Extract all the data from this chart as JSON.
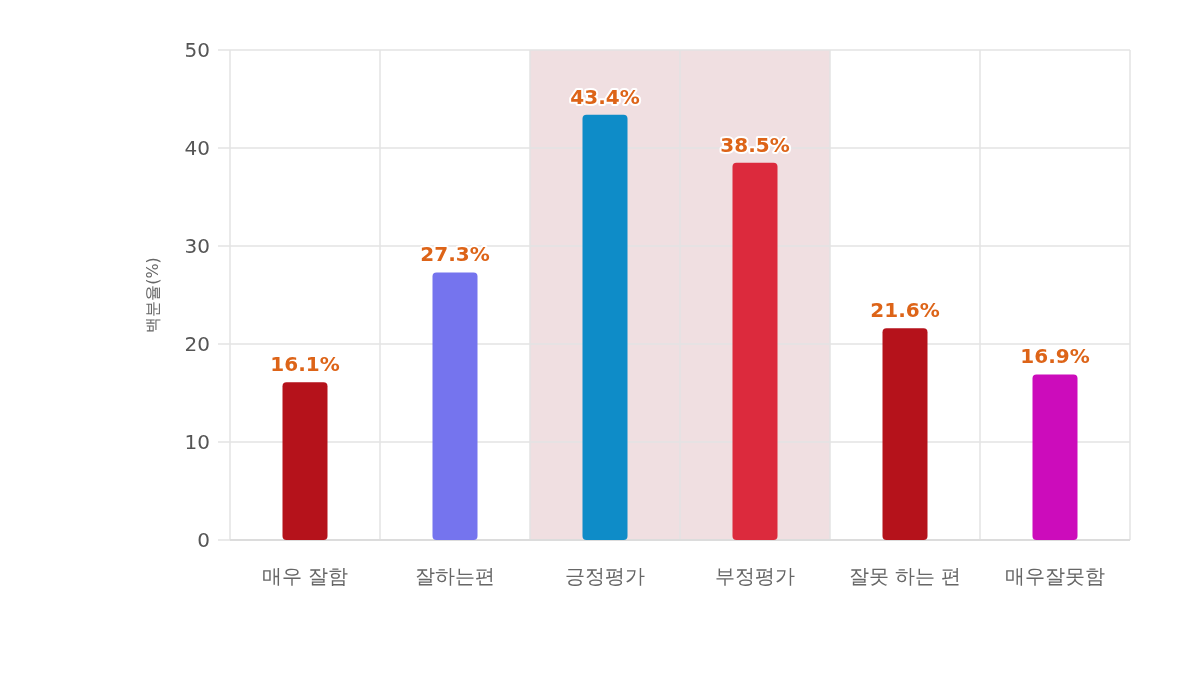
{
  "chart_data": {
    "type": "bar",
    "ylabel": "백분율(%)",
    "categories": [
      "매우 잘함",
      "잘하는편",
      "긍정평가",
      "부정평가",
      "잘못 하는 편",
      "매우잘못함"
    ],
    "values": [
      16.1,
      27.3,
      43.4,
      38.5,
      21.6,
      16.9
    ],
    "value_labels": [
      "16.1%",
      "27.3%",
      "43.4%",
      "38.5%",
      "21.6%",
      "16.9%"
    ],
    "colors": [
      "#b5121b",
      "#7574ee",
      "#0e8cc8",
      "#dc2a3d",
      "#b5121b",
      "#cc0cbb"
    ],
    "ylim": [
      0,
      50
    ],
    "yticks": [
      0,
      10,
      20,
      30,
      40,
      50
    ],
    "grid": true,
    "bands": [
      {
        "axis": "x",
        "from": "긍정평가",
        "to": "부정평가",
        "color": "#f0dfe1"
      }
    ]
  }
}
